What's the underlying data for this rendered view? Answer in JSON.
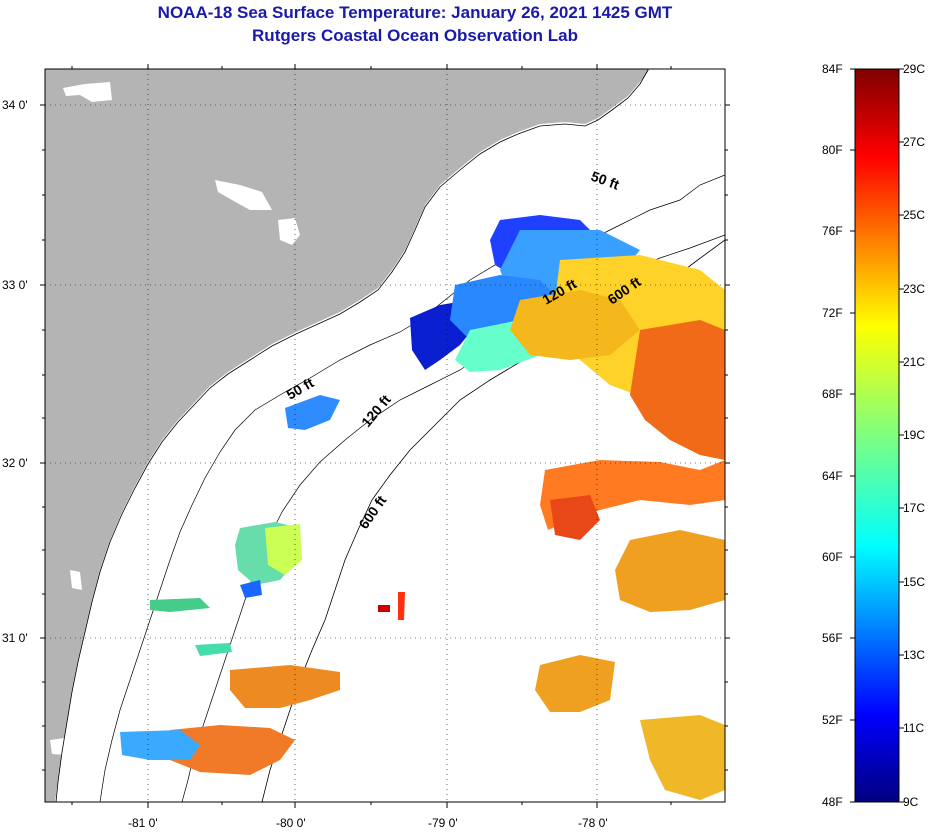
{
  "header": {
    "title": "NOAA-18 Sea Surface Temperature:  January 26, 2021 1425 GMT",
    "subtitle": "Rutgers Coastal Ocean Observation Lab"
  },
  "map": {
    "lat_ticks": [
      "34 0'",
      "33 0'",
      "32 0'",
      "31 0'"
    ],
    "lon_ticks": [
      "-81 0'",
      "-80 0'",
      "-79 0'",
      "-78 0'"
    ],
    "lat_range": [
      30.2,
      34.2
    ],
    "lon_range": [
      -81.7,
      -77.0
    ],
    "isobath_labels": [
      "50 ft",
      "120 ft",
      "600 ft",
      "50 ft",
      "120 ft",
      "600 ft"
    ],
    "colors": {
      "land": "#b4b4b4",
      "ocean": "#ffffff",
      "coast": "#000000",
      "grid": "#000000"
    }
  },
  "colorbar": {
    "fahrenheit": [
      "84F",
      "80F",
      "76F",
      "72F",
      "68F",
      "64F",
      "60F",
      "56F",
      "52F",
      "48F"
    ],
    "celsius": [
      "29C",
      "27C",
      "25C",
      "23C",
      "21C",
      "19C",
      "17C",
      "15C",
      "13C",
      "11C",
      "9C"
    ],
    "range_f": [
      48,
      84
    ],
    "colormap": "jet"
  }
}
